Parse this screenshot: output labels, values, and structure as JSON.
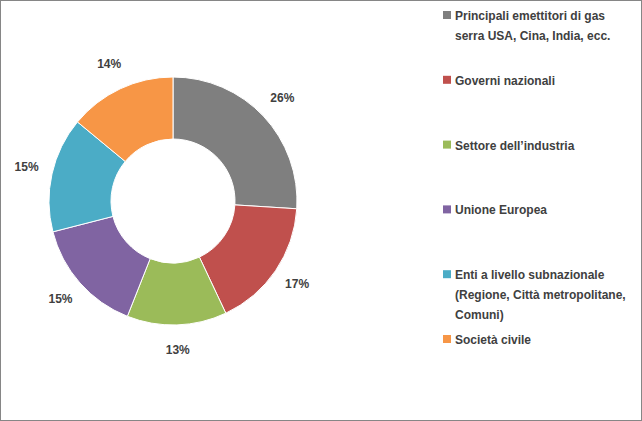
{
  "chart_data": {
    "type": "pie",
    "categories": [
      "Principali emettitori di gas serra USA, Cina, India, ecc.",
      "Governi nazionali",
      "Settore dell’industria",
      "Unione Europea",
      "Enti a livello subnazionale (Regione, Città metropolitane, Comuni)",
      "Società civile"
    ],
    "values": [
      26,
      17,
      13,
      15,
      15,
      14
    ],
    "value_labels": [
      "26%",
      "17%",
      "13%",
      "15%",
      "15%",
      "14%"
    ],
    "colors": [
      "#7f7f7f",
      "#c0504d",
      "#9bbb59",
      "#8064a2",
      "#4bacc6",
      "#f79646"
    ],
    "data_labels": true,
    "legend": "right"
  }
}
